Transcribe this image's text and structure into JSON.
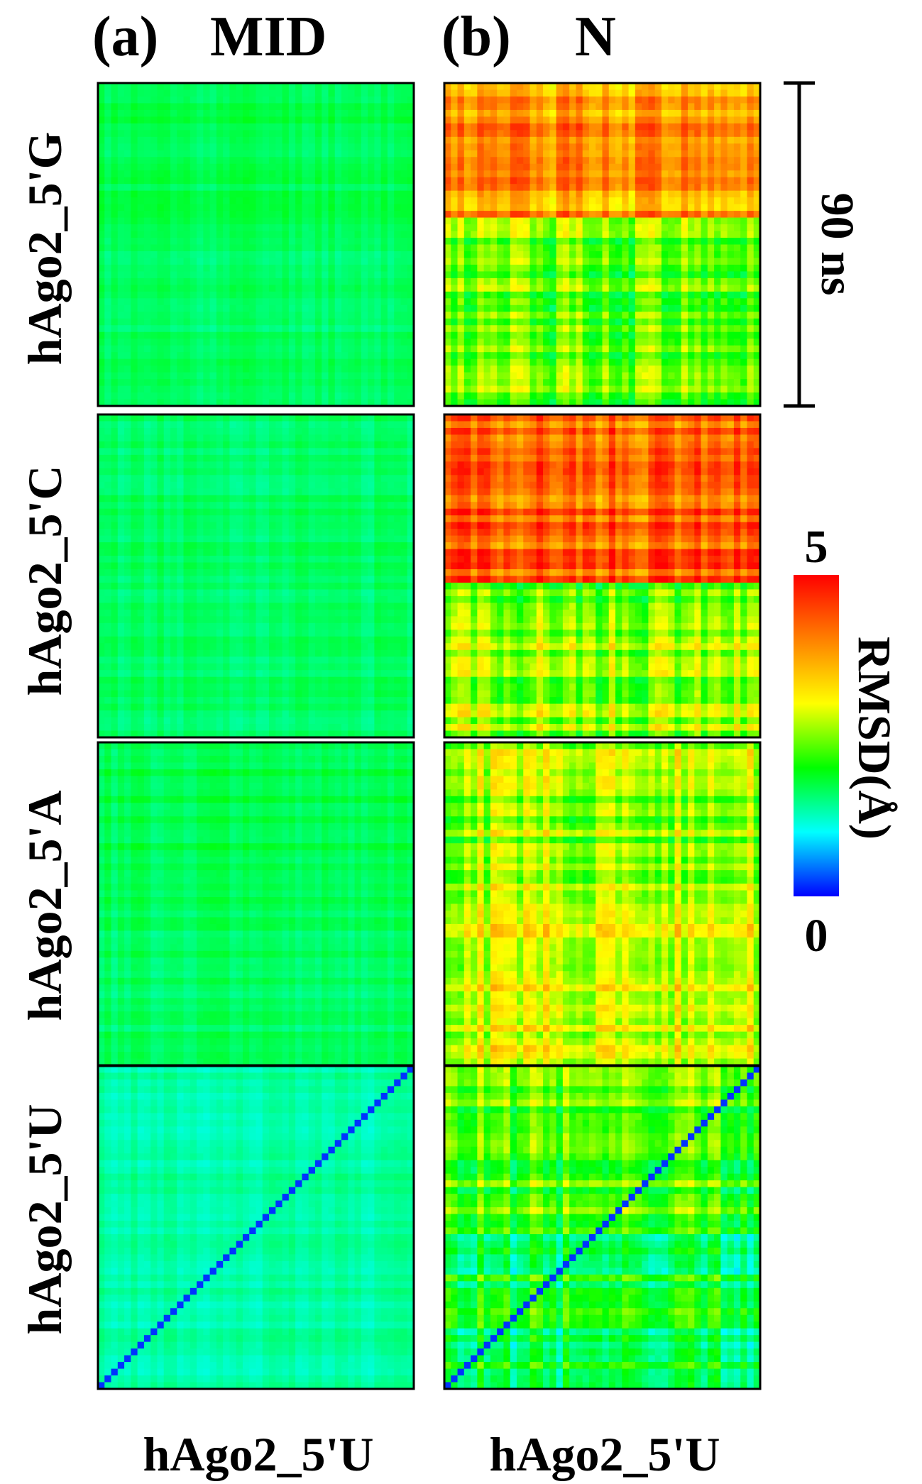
{
  "chart_data": {
    "type": "heatmap",
    "description_free": true,
    "columns": [
      {
        "panel_letter": "(a)",
        "region": "MID"
      },
      {
        "panel_letter": "(b)",
        "region": "N"
      }
    ],
    "rows": [
      "hAgo2_5'G",
      "hAgo2_5'C",
      "hAgo2_5'A",
      "hAgo2_5'U"
    ],
    "xlabel": "hAgo2_5'U",
    "time_scale": {
      "label": "90 ns",
      "value_ns": 90
    },
    "colorbar": {
      "label": "RMSD(Å)",
      "min": 0,
      "max": 5,
      "min_label": "0",
      "max_label": "5",
      "colors": [
        "#0000ff",
        "#00ffff",
        "#00ff00",
        "#ffff00",
        "#ff8000",
        "#ff0000"
      ]
    },
    "grid_size": 48,
    "panels": [
      {
        "column": "MID",
        "row": "hAgo2_5'G",
        "top_value": 1.7,
        "bottom_value": 1.6,
        "split": 0.45,
        "diagonal": false,
        "seed": 11
      },
      {
        "column": "N",
        "row": "hAgo2_5'G",
        "top_value": 3.8,
        "bottom_value": 2.4,
        "split": 0.42,
        "diagonal": false,
        "seed": 12
      },
      {
        "column": "MID",
        "row": "hAgo2_5'C",
        "top_value": 1.6,
        "bottom_value": 1.6,
        "split": 0.5,
        "diagonal": false,
        "seed": 13
      },
      {
        "column": "N",
        "row": "hAgo2_5'C",
        "top_value": 4.2,
        "bottom_value": 2.5,
        "split": 0.52,
        "diagonal": false,
        "seed": 14
      },
      {
        "column": "MID",
        "row": "hAgo2_5'A",
        "top_value": 1.7,
        "bottom_value": 1.6,
        "split": 0.5,
        "diagonal": false,
        "seed": 15
      },
      {
        "column": "N",
        "row": "hAgo2_5'A",
        "top_value": 2.6,
        "bottom_value": 2.9,
        "split": 0.45,
        "diagonal": false,
        "seed": 16
      },
      {
        "column": "MID",
        "row": "hAgo2_5'U",
        "top_value": 1.35,
        "bottom_value": 1.35,
        "split": 0.5,
        "diagonal": true,
        "seed": 17
      },
      {
        "column": "N",
        "row": "hAgo2_5'U",
        "top_value": 2.2,
        "bottom_value": 1.8,
        "split": 0.5,
        "diagonal": true,
        "seed": 18
      }
    ]
  }
}
